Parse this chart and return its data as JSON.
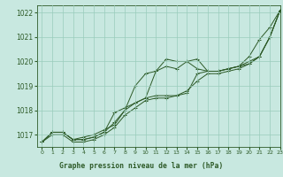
{
  "title": "Graphe pression niveau de la mer (hPa)",
  "xlim": [
    -0.5,
    23
  ],
  "ylim": [
    1016.5,
    1022.3
  ],
  "yticks": [
    1017,
    1018,
    1019,
    1020,
    1021,
    1022
  ],
  "xticks": [
    0,
    1,
    2,
    3,
    4,
    5,
    6,
    7,
    8,
    9,
    10,
    11,
    12,
    13,
    14,
    15,
    16,
    17,
    18,
    19,
    20,
    21,
    22,
    23
  ],
  "background_color": "#c8e8e0",
  "grid_color": "#99ccbb",
  "line_color": "#2d5a27",
  "title_bg": "#2d5a27",
  "title_fg": "#ffffff",
  "marker": "+",
  "series": [
    [
      1016.7,
      1017.1,
      1017.1,
      1016.8,
      1016.8,
      1016.9,
      1017.1,
      1017.5,
      1018.0,
      1019.0,
      1019.5,
      1019.6,
      1020.1,
      1020.0,
      1020.0,
      1020.1,
      1019.6,
      1019.6,
      1019.7,
      1019.8,
      1020.2,
      1020.9,
      1021.4,
      1022.1
    ],
    [
      1016.7,
      1017.1,
      1017.1,
      1016.8,
      1016.8,
      1016.9,
      1017.1,
      1017.9,
      1018.1,
      1018.3,
      1018.5,
      1019.6,
      1019.8,
      1019.7,
      1020.0,
      1019.7,
      1019.6,
      1019.6,
      1019.7,
      1019.8,
      1020.0,
      1020.2,
      1021.0,
      1022.1
    ],
    [
      1016.7,
      1017.1,
      1017.1,
      1016.8,
      1016.9,
      1017.0,
      1017.2,
      1017.4,
      1018.0,
      1018.3,
      1018.5,
      1018.6,
      1018.6,
      1018.6,
      1018.7,
      1019.5,
      1019.6,
      1019.6,
      1019.7,
      1019.8,
      1019.9,
      1020.2,
      1021.0,
      1022.1
    ],
    [
      1016.7,
      1017.0,
      1017.0,
      1016.7,
      1016.7,
      1016.8,
      1017.0,
      1017.3,
      1017.8,
      1018.1,
      1018.4,
      1018.5,
      1018.5,
      1018.6,
      1018.8,
      1019.2,
      1019.5,
      1019.5,
      1019.6,
      1019.7,
      1019.9,
      1020.2,
      1021.0,
      1022.1
    ]
  ]
}
